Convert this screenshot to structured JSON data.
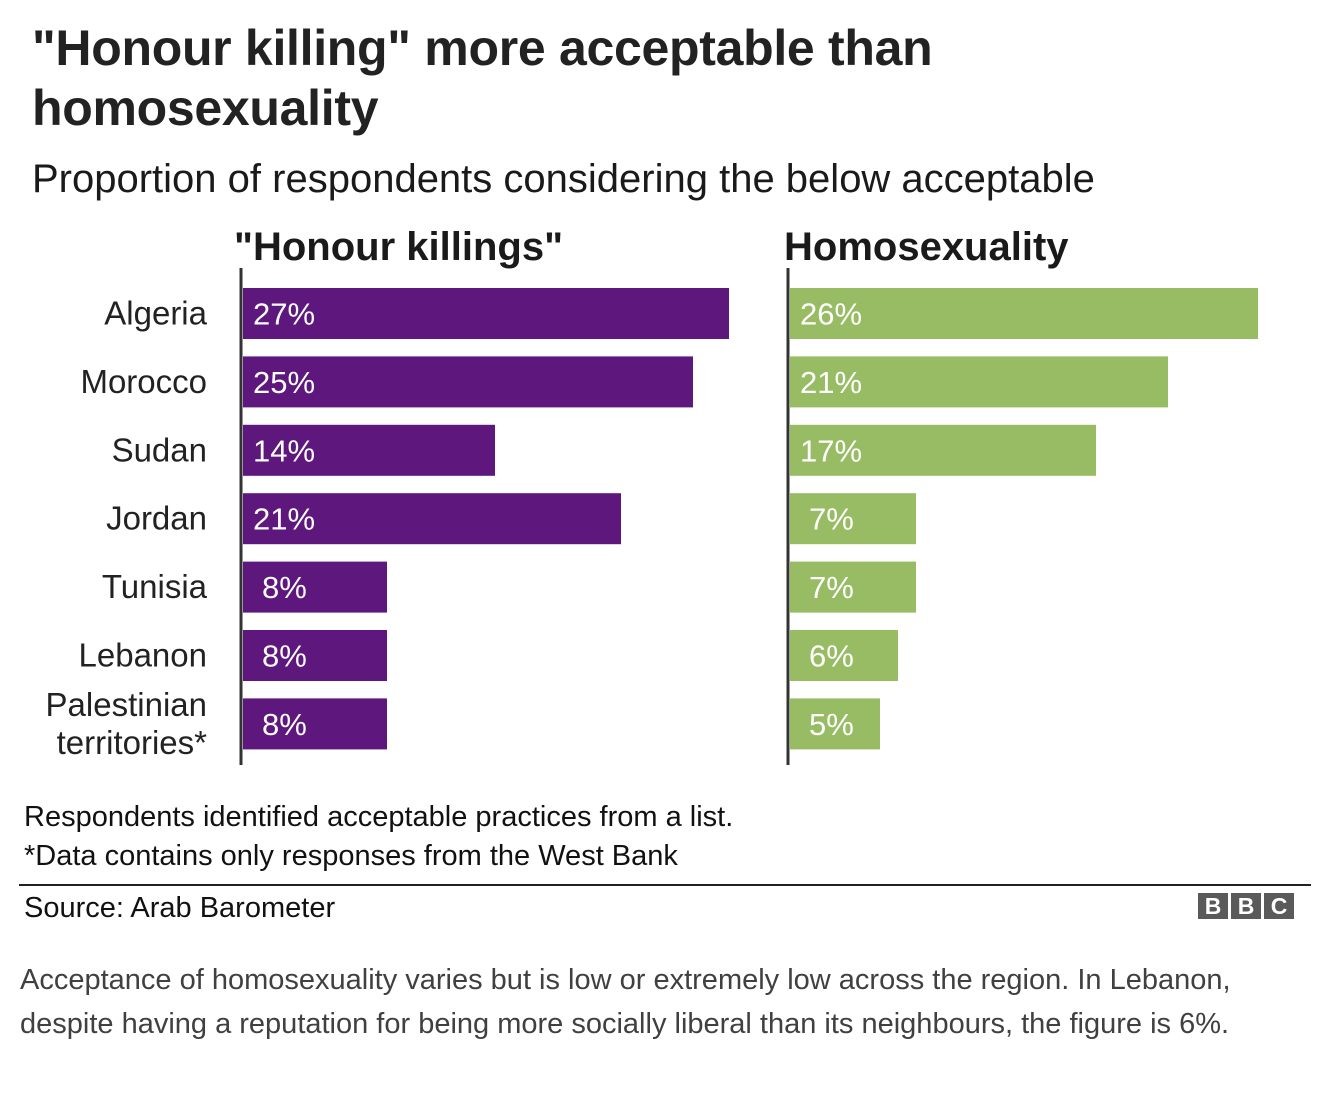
{
  "header": {
    "title": "\"Honour killing\" more acceptable than homosexuality",
    "subtitle": "Proportion of respondents considering the below acceptable"
  },
  "chart_data": {
    "type": "bar",
    "orientation": "horizontal",
    "title": "\"Honour killing\" more acceptable than homosexuality",
    "subtitle": "Proportion of respondents considering the below acceptable",
    "xlabel": "",
    "ylabel": "",
    "unit": "%",
    "grid": false,
    "categories": [
      "Algeria",
      "Morocco",
      "Sudan",
      "Jordan",
      "Tunisia",
      "Lebanon",
      "Palestinian territories*"
    ],
    "category_lines": [
      [
        "Algeria"
      ],
      [
        "Morocco"
      ],
      [
        "Sudan"
      ],
      [
        "Jordan"
      ],
      [
        "Tunisia"
      ],
      [
        "Lebanon"
      ],
      [
        "Palestinian",
        "territories*"
      ]
    ],
    "xlim": [
      0,
      27
    ],
    "series": [
      {
        "name": "\"Honour killings\"",
        "color": "#5e177c",
        "values": [
          27,
          25,
          14,
          21,
          8,
          8,
          8
        ],
        "labels": [
          "27%",
          "25%",
          "14%",
          "21%",
          "8%",
          "8%",
          "8%"
        ]
      },
      {
        "name": "Homosexuality",
        "color": "#98bc64",
        "values": [
          26,
          21,
          17,
          7,
          7,
          6,
          5
        ],
        "labels": [
          "26%",
          "21%",
          "17%",
          "7%",
          "7%",
          "6%",
          "5%"
        ]
      }
    ]
  },
  "notes": {
    "line1": "Respondents identified acceptable practices from a list.",
    "line2": "*Data contains only responses from the West Bank"
  },
  "footer": {
    "source": "Source: Arab Barometer",
    "logo_letters": [
      "B",
      "B",
      "C"
    ],
    "logo_name": "BBC"
  },
  "caption": "Acceptance of homosexuality varies but is low or extremely low across the region. In Lebanon, despite having a reputation for being more socially liberal than its neighbours, the figure is 6%.",
  "colors": {
    "honour_killings": "#5e177c",
    "homosexuality": "#98bc64",
    "axis": "#333333",
    "logo": "#5a5a5a"
  }
}
